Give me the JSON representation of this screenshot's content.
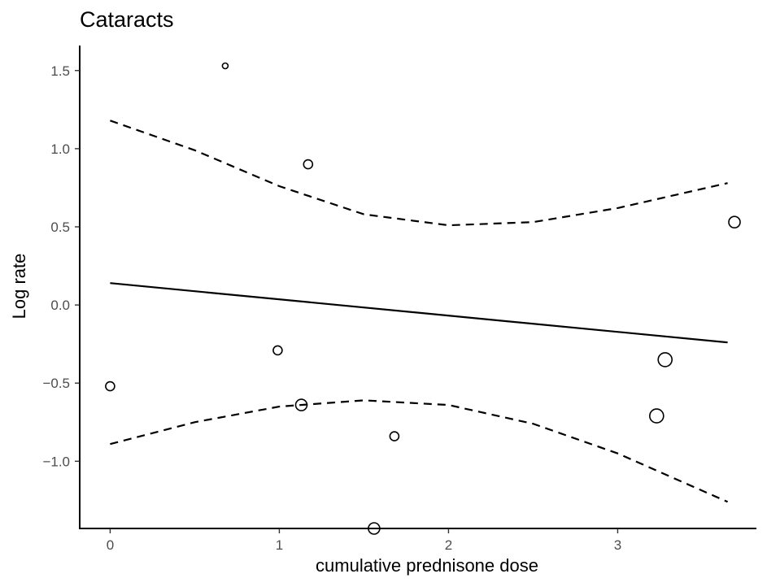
{
  "chart_data": {
    "type": "scatter",
    "title": "Cataracts",
    "xlabel": "cumulative prednisone dose",
    "ylabel": "Log rate",
    "xlim": [
      -0.18,
      3.82
    ],
    "ylim": [
      -1.43,
      1.66
    ],
    "x_ticks": [
      0,
      1,
      2,
      3
    ],
    "y_ticks": [
      -1.0,
      -0.5,
      0.0,
      0.5,
      1.0,
      1.5
    ],
    "x_tick_labels": [
      "0",
      "1",
      "2",
      "3"
    ],
    "y_tick_labels": [
      "−1.0",
      "−0.5",
      "0.0",
      "0.5",
      "1.0",
      "1.5"
    ],
    "grid": false,
    "points": [
      {
        "x": 0.68,
        "y": 1.53,
        "size": 1
      },
      {
        "x": 1.17,
        "y": 0.9,
        "size": 2
      },
      {
        "x": 3.69,
        "y": 0.53,
        "size": 3
      },
      {
        "x": 0.99,
        "y": -0.29,
        "size": 2
      },
      {
        "x": 3.28,
        "y": -0.35,
        "size": 4
      },
      {
        "x": 0.0,
        "y": -0.52,
        "size": 2
      },
      {
        "x": 1.13,
        "y": -0.64,
        "size": 3
      },
      {
        "x": 3.23,
        "y": -0.71,
        "size": 4
      },
      {
        "x": 1.68,
        "y": -0.84,
        "size": 2
      },
      {
        "x": 1.56,
        "y": -1.43,
        "size": 3
      }
    ],
    "fit_line": {
      "x": [
        0.0,
        3.65
      ],
      "y": [
        0.14,
        -0.24
      ]
    },
    "upper_band": {
      "x": [
        0.0,
        0.5,
        1.0,
        1.5,
        2.0,
        2.5,
        3.0,
        3.65
      ],
      "y": [
        1.18,
        0.99,
        0.76,
        0.58,
        0.51,
        0.53,
        0.62,
        0.78
      ]
    },
    "lower_band": {
      "x": [
        0.0,
        0.5,
        1.0,
        1.5,
        2.0,
        2.5,
        3.0,
        3.65
      ],
      "y": [
        -0.89,
        -0.75,
        -0.65,
        -0.61,
        -0.64,
        -0.76,
        -0.95,
        -1.26
      ]
    }
  }
}
